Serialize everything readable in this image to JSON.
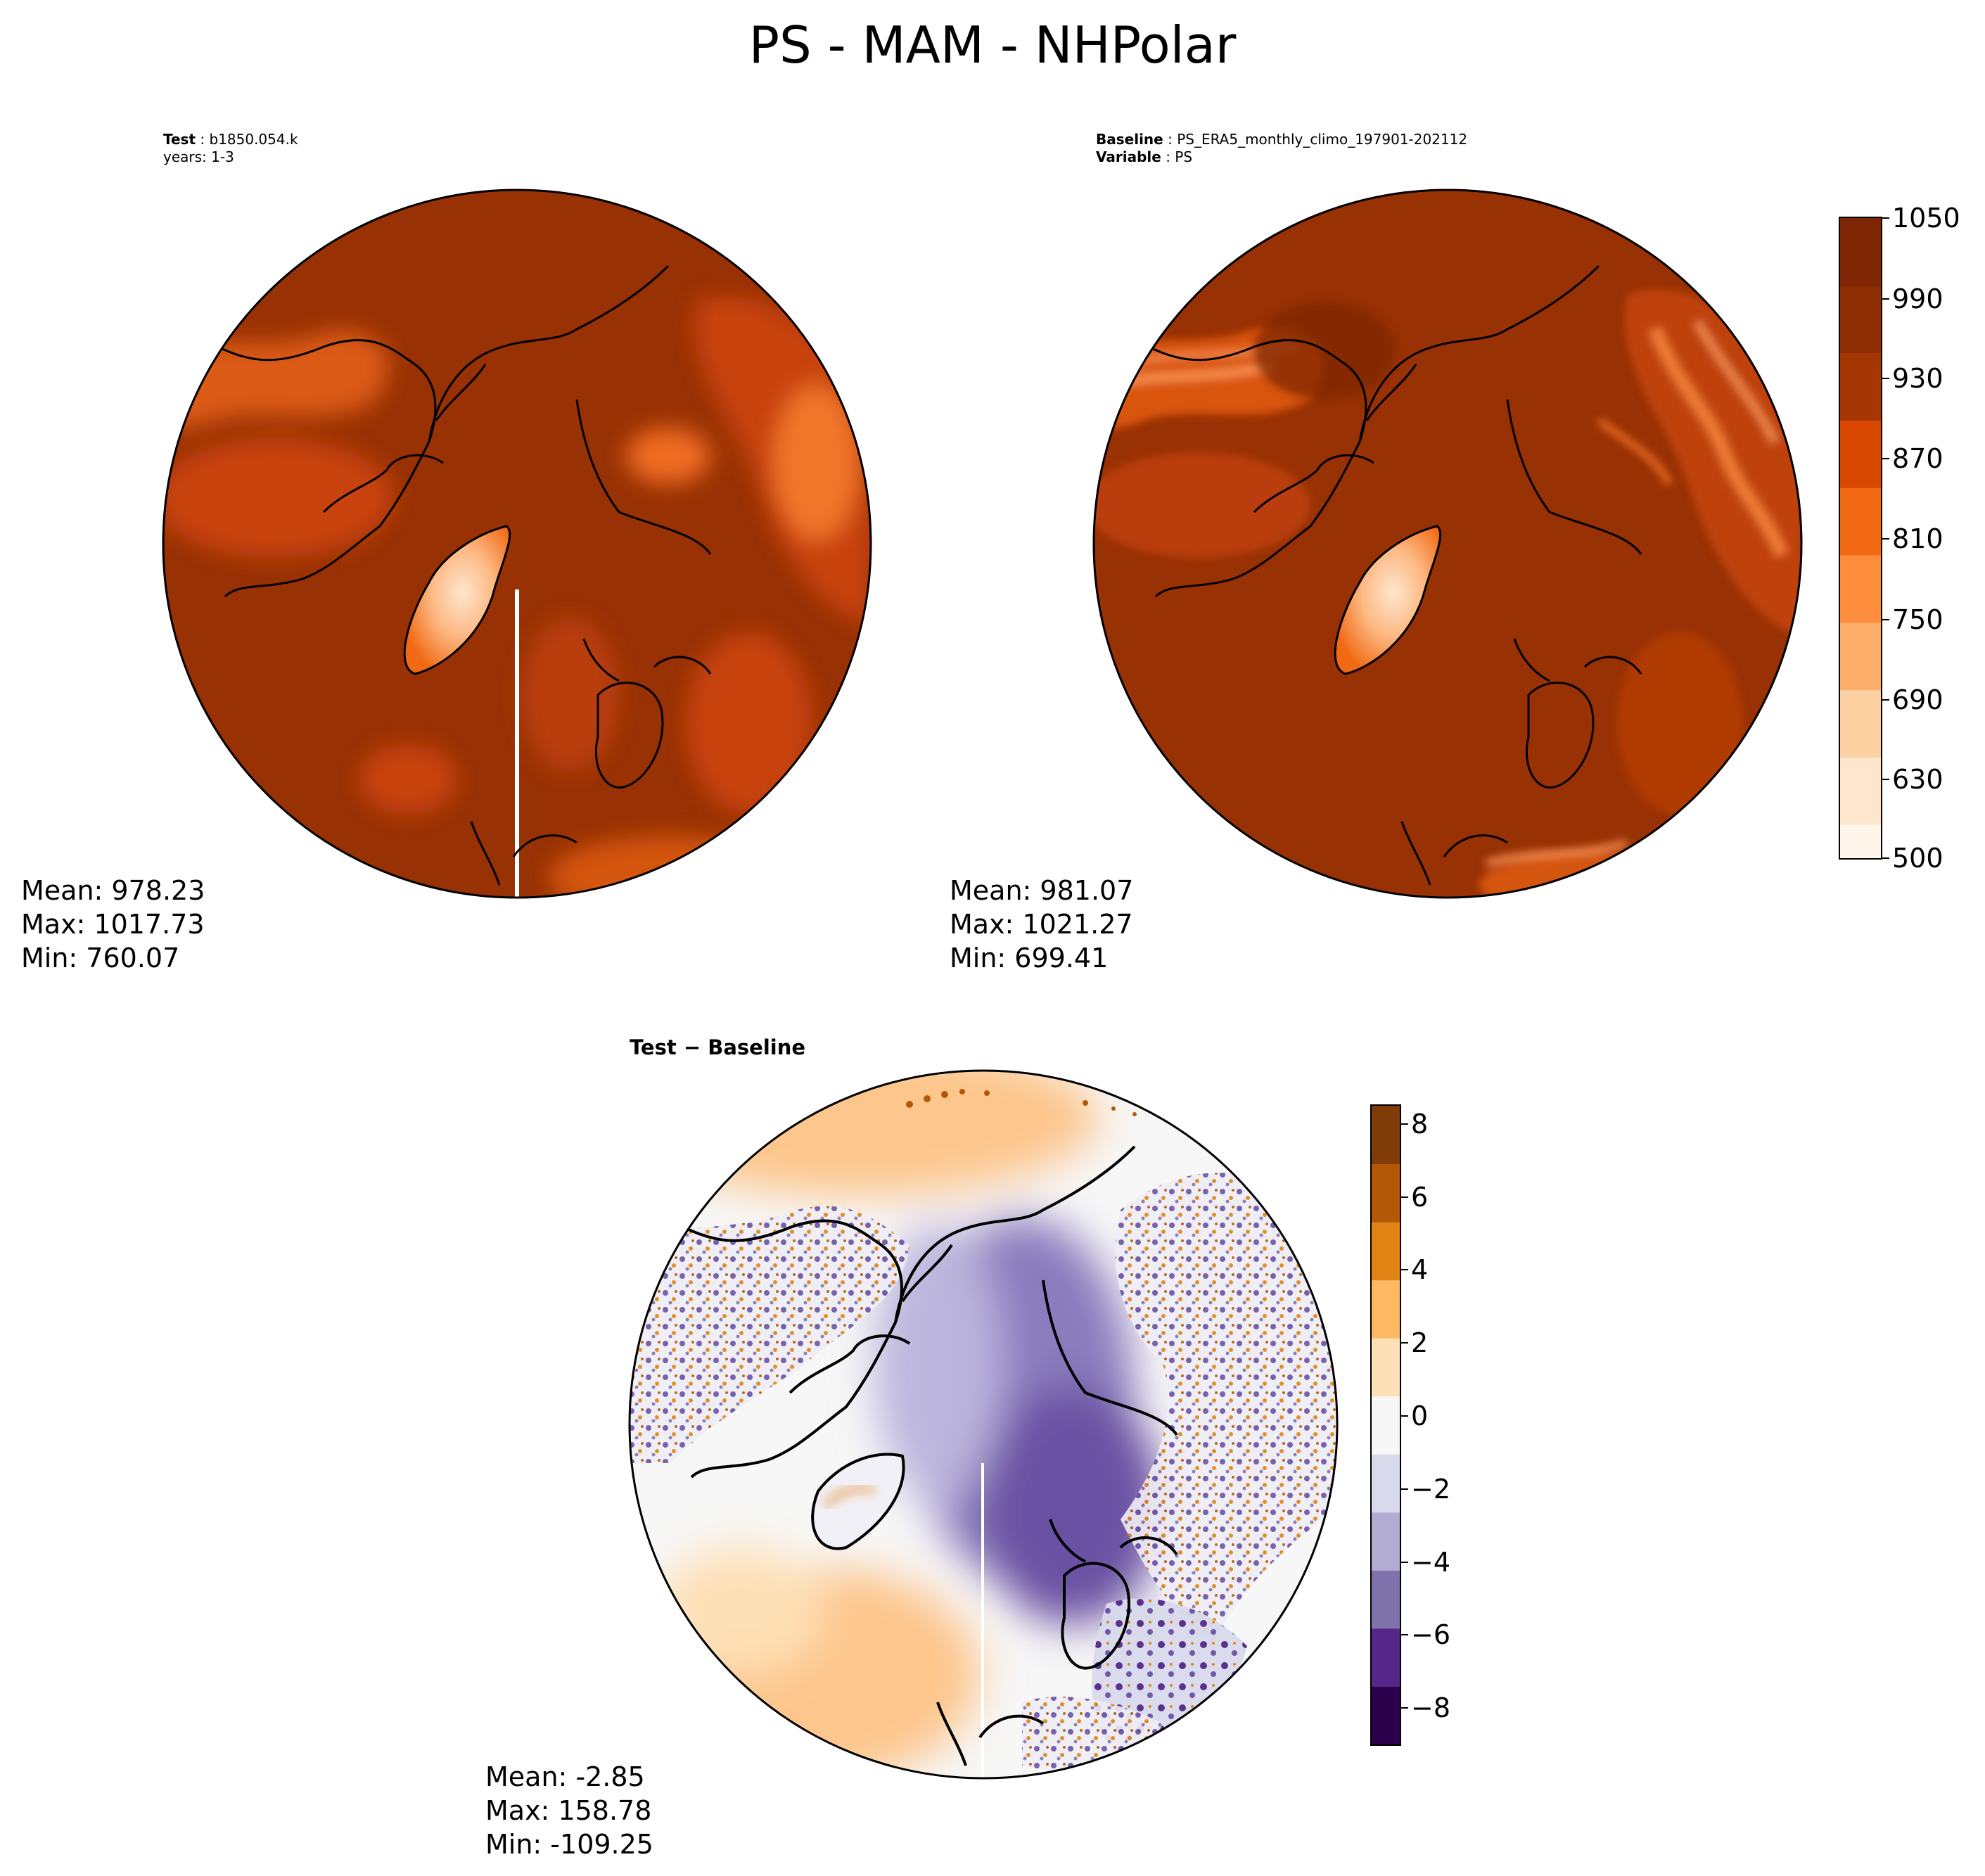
{
  "figure_title": "PS - MAM - NHPolar",
  "test_panel": {
    "label_key": "Test",
    "label_value": "b1850.054.k",
    "years_line": "years: 1-3",
    "stats": {
      "mean": "Mean: 978.23",
      "max": "Max: 1017.73",
      "min": "Min: 760.07"
    }
  },
  "baseline_panel": {
    "label_key": "Baseline",
    "label_value": "PS_ERA5_monthly_climo_197901-202112",
    "variable_key": "Variable",
    "variable_value": "PS",
    "stats": {
      "mean": "Mean: 981.07",
      "max": "Max: 1021.27",
      "min": "Min: 699.41"
    }
  },
  "diff_panel": {
    "title_left": "Test",
    "title_sep": " − ",
    "title_right": "Baseline",
    "stats": {
      "mean": "Mean: -2.85",
      "max": "Max: 158.78",
      "min": "Min: -109.25"
    }
  },
  "colorbar_main": {
    "ticks": [
      "1050",
      "990",
      "930",
      "870",
      "810",
      "750",
      "690",
      "630",
      "500"
    ],
    "colors": [
      "#fff5eb",
      "#fee6ce",
      "#fdd0a2",
      "#fdae6b",
      "#fd8d3c",
      "#f16913",
      "#d94801",
      "#a63603",
      "#8c2d04",
      "#7f2704"
    ]
  },
  "colorbar_diff": {
    "ticks": [
      "8",
      "6",
      "4",
      "2",
      "0",
      "−2",
      "−4",
      "−6",
      "−8"
    ],
    "range": [
      -9,
      8.5
    ],
    "colors": [
      "#2d004b",
      "#542788",
      "#8073ac",
      "#b2abd2",
      "#d8daeb",
      "#f7f7f7",
      "#fee0b6",
      "#fdb863",
      "#e08214",
      "#b35806",
      "#7f3b08"
    ]
  },
  "colors": {
    "field_dark": "#983103",
    "field_mid": "#c8430a",
    "field_light": "#f2762a",
    "greenland": "#fdb882",
    "diff_purple": "#6a51a3",
    "diff_orange": "#fdc68c",
    "coast": "#000000"
  }
}
